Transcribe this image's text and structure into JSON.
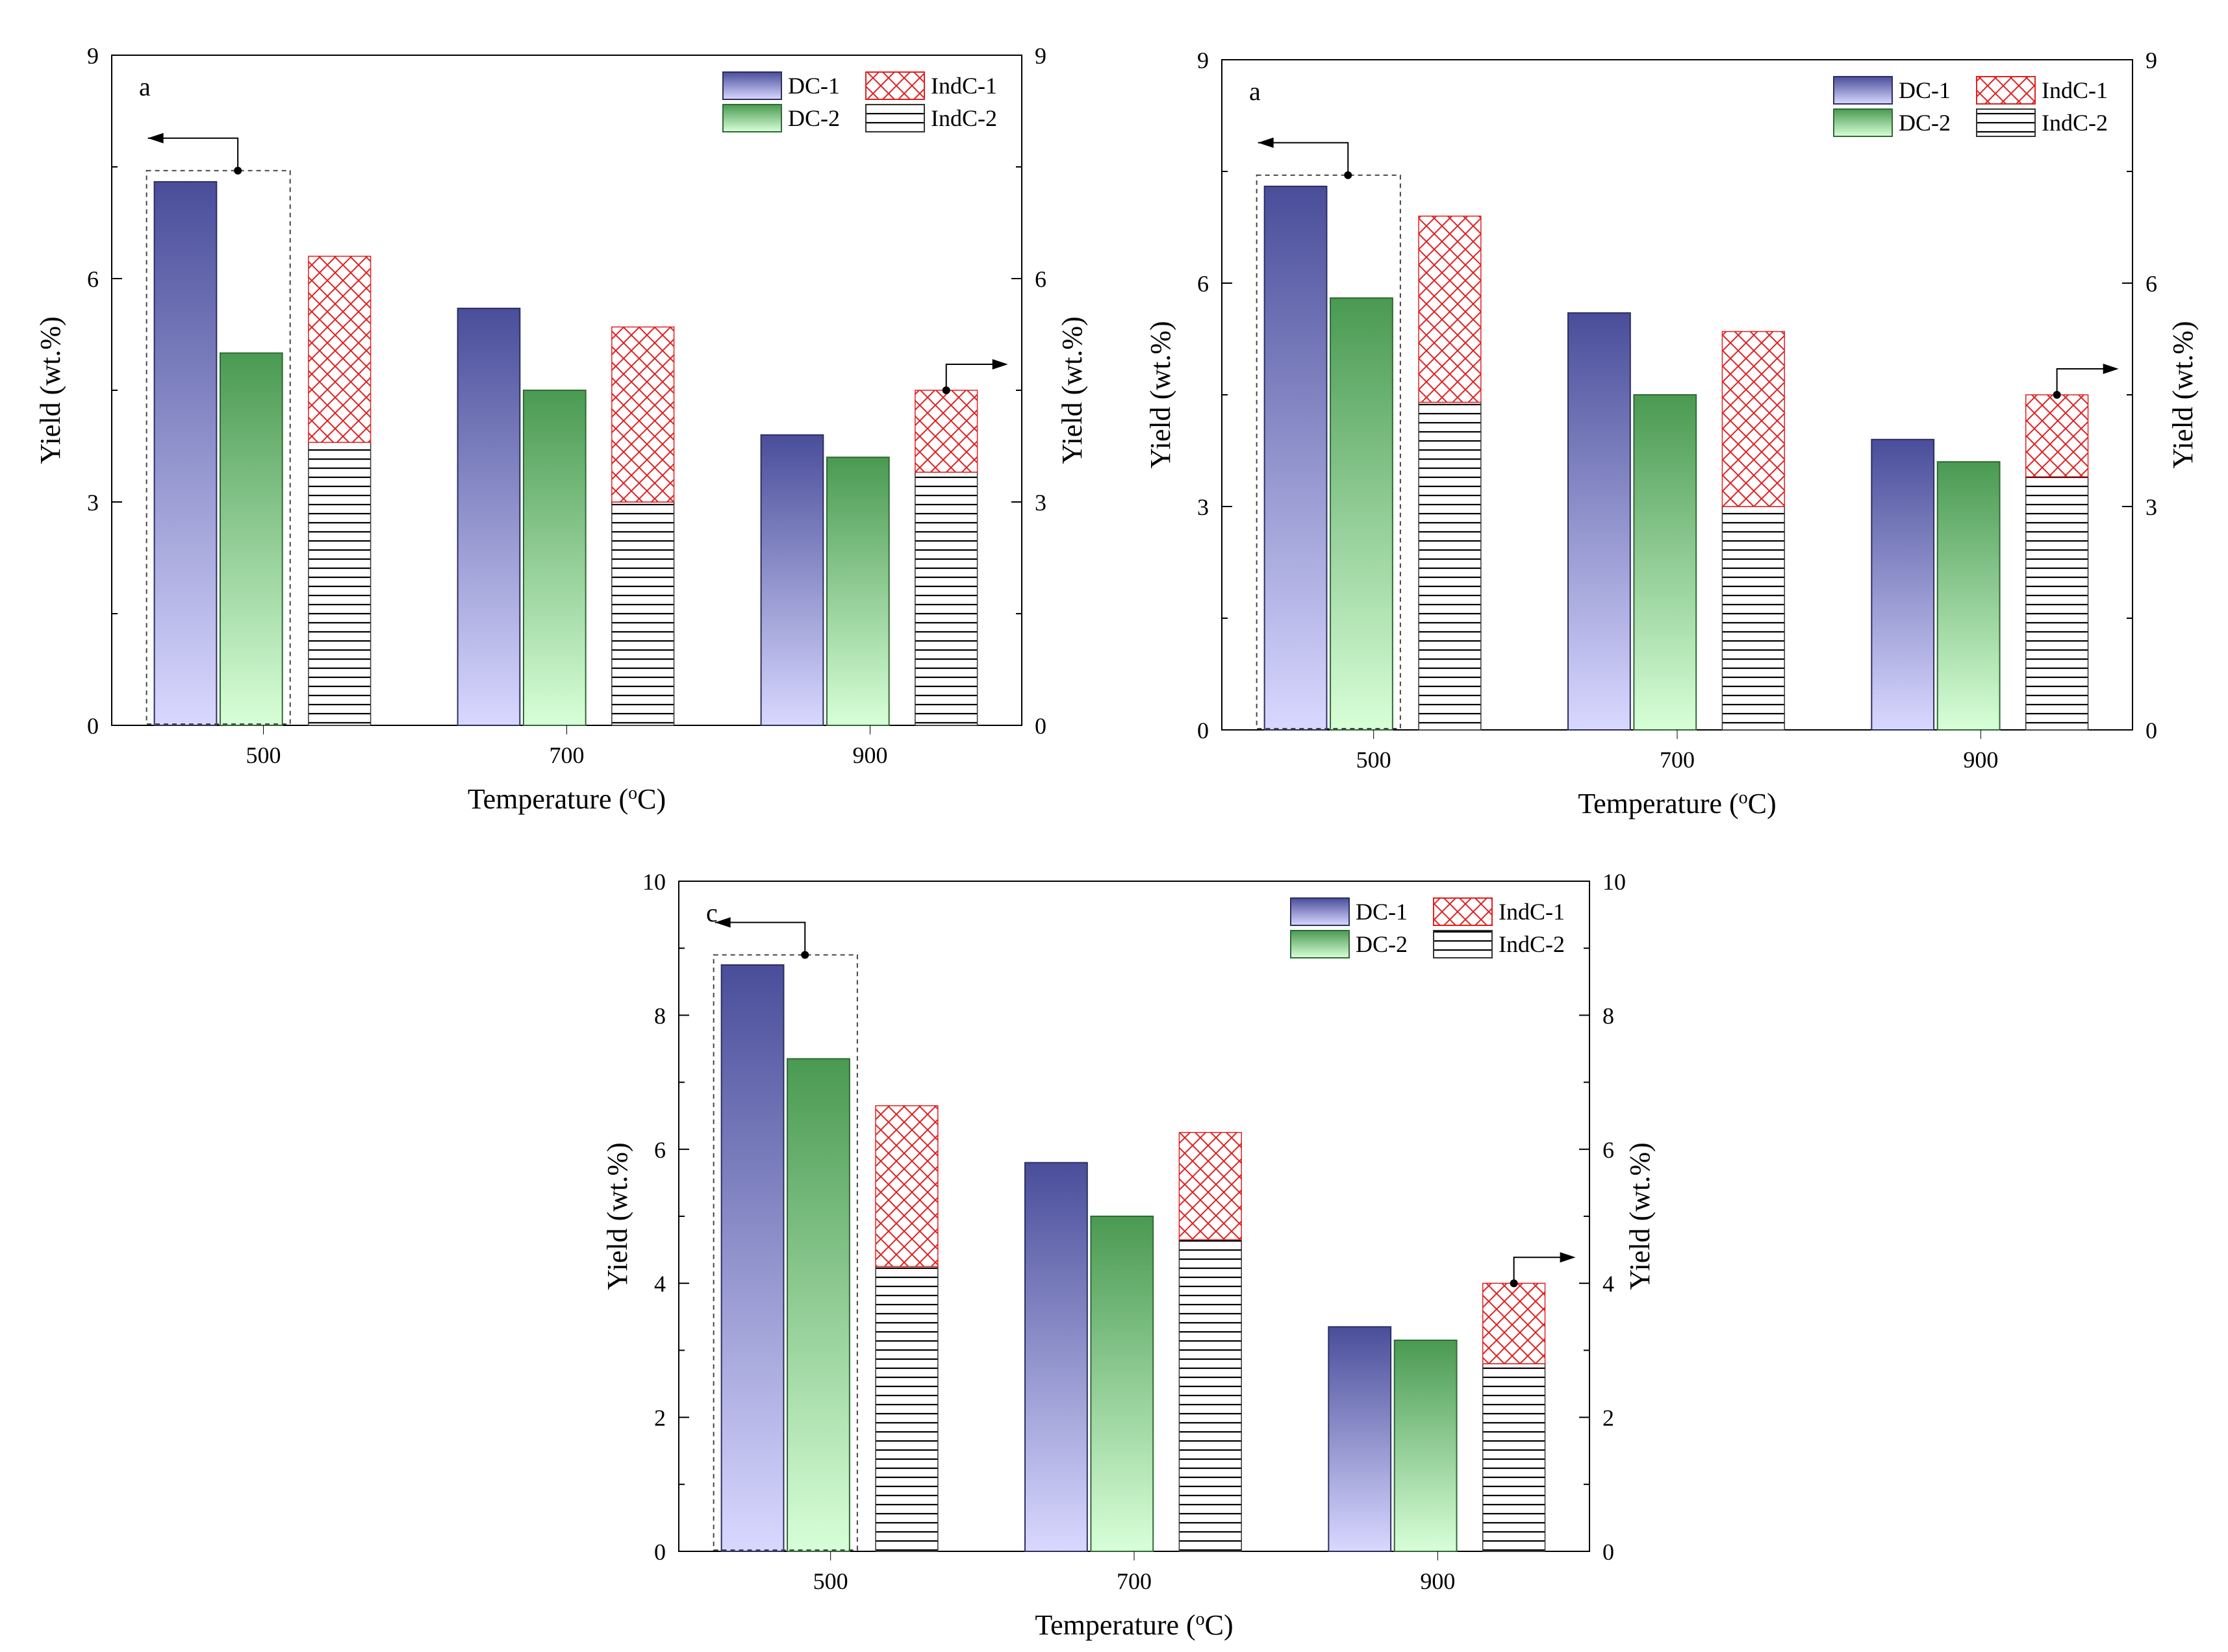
{
  "colors": {
    "dc1_top": "#4a4e9a",
    "dc1_bottom": "#d8d8ff",
    "dc2_top": "#4a9a52",
    "dc2_bottom": "#d8ffd8",
    "indc1_hatch": "#e02020",
    "indc2_hatch": "#000000",
    "frame": "#000000",
    "dashed_box": "#444444"
  },
  "chart_data": [
    {
      "type": "bar",
      "panel": "a",
      "categories": [
        "500",
        "700",
        "900"
      ],
      "xlabel": "Temperature (°C)",
      "xlabel_main": "Temperature (",
      "xlabel_sup": "o",
      "xlabel_end": "C)",
      "ylabel": "Yield (wt.%)",
      "ylabel_right": "Yield (wt.%)",
      "ylim": [
        0,
        9
      ],
      "yticks": [
        "0",
        "3",
        "6",
        "9"
      ],
      "ytick_values": [
        0,
        3,
        6,
        9
      ],
      "series": [
        {
          "name": "DC-1",
          "values": [
            7.3,
            5.6,
            3.9
          ]
        },
        {
          "name": "DC-2",
          "values": [
            5.0,
            4.5,
            3.6
          ]
        },
        {
          "name": "IndC-2",
          "values": [
            3.8,
            3.0,
            3.4
          ],
          "stacked": true
        },
        {
          "name": "IndC-1",
          "values": [
            2.5,
            2.35,
            1.1
          ],
          "stacked": true,
          "stack_top": [
            6.3,
            5.35,
            4.5
          ]
        }
      ],
      "legend": [
        "DC-1",
        "IndC-1",
        "DC-2",
        "IndC-2"
      ],
      "left_arrow_anchor": 7.45,
      "right_arrow_anchor": 4.5
    },
    {
      "type": "bar",
      "panel": "a",
      "categories": [
        "500",
        "700",
        "900"
      ],
      "xlabel": "Temperature (°C)",
      "xlabel_main": "Temperature (",
      "xlabel_sup": "o",
      "xlabel_end": "C)",
      "ylabel": "Yield (wt.%)",
      "ylabel_right": "Yield (wt.%)",
      "ylim": [
        0,
        9
      ],
      "yticks": [
        "0",
        "3",
        "6",
        "9"
      ],
      "ytick_values": [
        0,
        3,
        6,
        9
      ],
      "series": [
        {
          "name": "DC-1",
          "values": [
            7.3,
            5.6,
            3.9
          ]
        },
        {
          "name": "DC-2",
          "values": [
            5.8,
            4.5,
            3.6
          ]
        },
        {
          "name": "IndC-2",
          "values": [
            4.4,
            3.0,
            3.4
          ],
          "stacked": true
        },
        {
          "name": "IndC-1",
          "values": [
            2.5,
            2.35,
            1.1
          ],
          "stacked": true,
          "stack_top": [
            6.9,
            5.35,
            4.5
          ]
        }
      ],
      "legend": [
        "DC-1",
        "IndC-1",
        "DC-2",
        "IndC-2"
      ],
      "left_arrow_anchor": 7.45,
      "right_arrow_anchor": 4.5
    },
    {
      "type": "bar",
      "panel": "c",
      "categories": [
        "500",
        "700",
        "900"
      ],
      "xlabel": "Temperature (°C)",
      "xlabel_main": "Temperature (",
      "xlabel_sup": "o",
      "xlabel_end": "C)",
      "ylabel": "Yield (wt.%)",
      "ylabel_right": "Yield (wt.%)",
      "ylim": [
        0,
        10
      ],
      "yticks": [
        "0",
        "2",
        "4",
        "6",
        "8",
        "10"
      ],
      "ytick_values": [
        0,
        2,
        4,
        6,
        8,
        10
      ],
      "series": [
        {
          "name": "DC-1",
          "values": [
            8.75,
            5.8,
            3.35
          ]
        },
        {
          "name": "DC-2",
          "values": [
            7.35,
            5.0,
            3.15
          ]
        },
        {
          "name": "IndC-2",
          "values": [
            4.25,
            4.65,
            2.8
          ],
          "stacked": true
        },
        {
          "name": "IndC-1",
          "values": [
            2.4,
            1.6,
            1.2
          ],
          "stacked": true,
          "stack_top": [
            6.65,
            6.25,
            4.0
          ]
        }
      ],
      "legend": [
        "DC-1",
        "IndC-1",
        "DC-2",
        "IndC-2"
      ],
      "left_arrow_anchor": 8.9,
      "right_arrow_anchor": 4.0
    }
  ]
}
